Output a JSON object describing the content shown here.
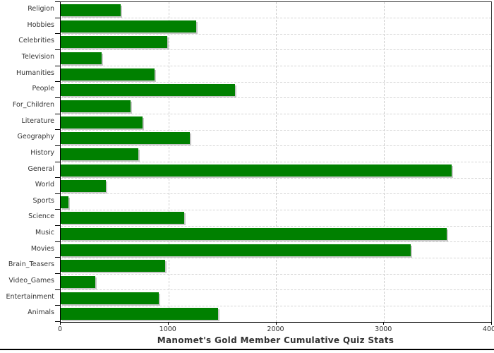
{
  "chart_data": {
    "type": "bar",
    "orientation": "horizontal",
    "title": "Manomet's Gold Member Cumulative Quiz Stats",
    "xlabel": "",
    "ylabel": "",
    "categories": [
      "Religion",
      "Hobbies",
      "Celebrities",
      "Television",
      "Humanities",
      "People",
      "For_Children",
      "Literature",
      "Geography",
      "History",
      "General",
      "World",
      "Sports",
      "Science",
      "Music",
      "Movies",
      "Brain_Teasers",
      "Video_Games",
      "Entertainment",
      "Animals"
    ],
    "values": [
      560,
      1260,
      990,
      380,
      870,
      1620,
      650,
      760,
      1200,
      720,
      3630,
      420,
      75,
      1145,
      3590,
      3250,
      970,
      320,
      910,
      1460
    ],
    "xlim": [
      0,
      4000
    ],
    "x_ticks": [
      0,
      1000,
      2000,
      3000,
      4000
    ],
    "grid": "dashed",
    "legend": "none",
    "colors": {
      "bar": "#008000",
      "bar_shadow": "#c8c8c8",
      "gridline": "#d0d0d0",
      "axis": "#000000",
      "text": "#333333",
      "background": "#ffffff"
    }
  }
}
